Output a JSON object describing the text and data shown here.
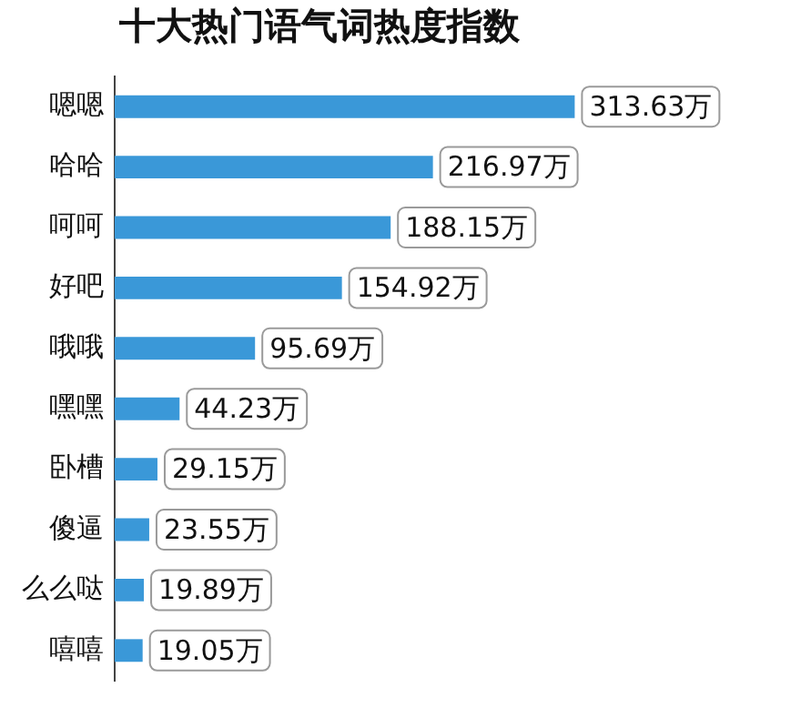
{
  "chart_data": {
    "type": "bar",
    "orientation": "horizontal",
    "title": "十大热门语气词热度指数",
    "categories": [
      "嗯嗯",
      "哈哈",
      "呵呵",
      "好吧",
      "哦哦",
      "嘿嘿",
      "卧槽",
      "傻逼",
      "么么哒",
      "嘻嘻"
    ],
    "values": [
      313.63,
      216.97,
      188.15,
      154.92,
      95.69,
      44.23,
      29.15,
      23.55,
      19.89,
      19.05
    ],
    "value_labels": [
      "313.63万",
      "216.97万",
      "188.15万",
      "154.92万",
      "95.69万",
      "44.23万",
      "29.15万",
      "23.55万",
      "19.89万",
      "19.05万"
    ],
    "color": "#3a98d8",
    "grid": false,
    "legend": false
  }
}
